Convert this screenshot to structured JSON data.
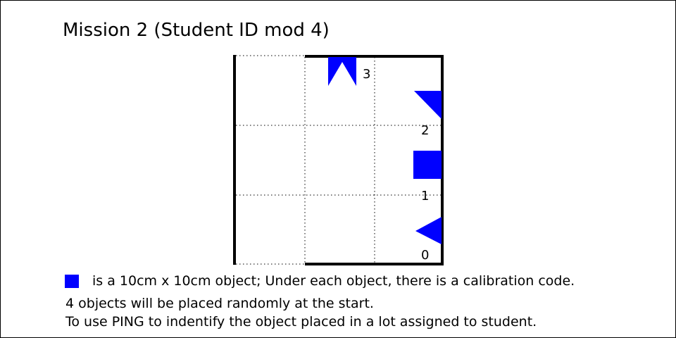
{
  "title": "Mission 2 (Student ID mod 4)",
  "diagram": {
    "lots": [
      {
        "label": "0",
        "shape": "left-pointing triangle"
      },
      {
        "label": "1",
        "shape": "square"
      },
      {
        "label": "2",
        "shape": "right triangle"
      },
      {
        "label": "3",
        "shape": "notched banner"
      }
    ]
  },
  "legend": {
    "text": "is a 10cm x 10cm object; Under each object, there is a calibration code."
  },
  "notes": [
    "4 objects will be placed randomly at the start.",
    "To use PING to indentify the object placed in a lot assigned to student."
  ],
  "colors": {
    "object": "#0000ff",
    "walls": "#000000",
    "grid": "#000000",
    "background": "#ffffff"
  }
}
